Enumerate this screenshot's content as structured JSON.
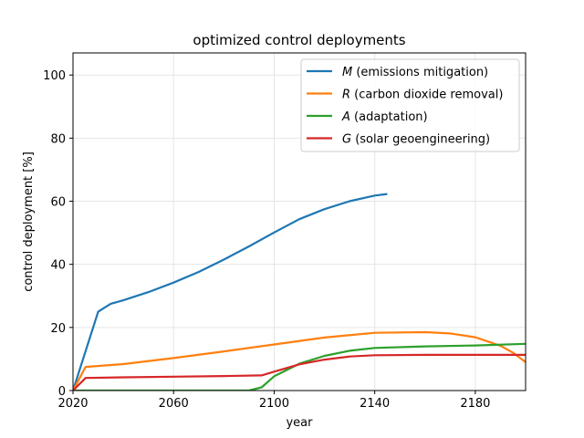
{
  "chart_data": {
    "type": "line",
    "title": "optimized control deployments",
    "xlabel": "year",
    "ylabel": "control deployment [%]",
    "xlim": [
      2020,
      2200
    ],
    "ylim": [
      0,
      107
    ],
    "xticks": [
      2020,
      2060,
      2100,
      2140,
      2180
    ],
    "yticks": [
      0,
      20,
      40,
      60,
      80,
      100
    ],
    "grid": true,
    "legend_position": "top-right",
    "series": [
      {
        "name": "M",
        "description": "(emissions mitigation)",
        "color": "#1f77b4",
        "x": [
          2020,
          2030,
          2035,
          2040,
          2050,
          2060,
          2070,
          2080,
          2090,
          2100,
          2110,
          2120,
          2130,
          2140,
          2145
        ],
        "y": [
          0,
          25,
          27.5,
          28.6,
          31.2,
          34.2,
          37.6,
          41.5,
          45.7,
          50.1,
          54.3,
          57.5,
          60.0,
          61.8,
          62.3
        ]
      },
      {
        "name": "R",
        "description": "(carbon dioxide removal)",
        "color": "#ff7f0e",
        "x": [
          2020,
          2025,
          2040,
          2060,
          2080,
          2100,
          2120,
          2140,
          2160,
          2170,
          2180,
          2190,
          2195,
          2200
        ],
        "y": [
          0,
          7.5,
          8.4,
          10.3,
          12.4,
          14.6,
          16.8,
          18.3,
          18.5,
          18.1,
          16.9,
          14.2,
          12.0,
          9.0
        ]
      },
      {
        "name": "A",
        "description": "(adaptation)",
        "color": "#2ca02c",
        "x": [
          2020,
          2040,
          2060,
          2080,
          2090,
          2095,
          2100,
          2110,
          2120,
          2130,
          2140,
          2160,
          2180,
          2200
        ],
        "y": [
          0,
          0,
          0,
          0,
          0,
          1.0,
          4.5,
          8.5,
          11.0,
          12.6,
          13.5,
          14.0,
          14.3,
          14.8
        ]
      },
      {
        "name": "G",
        "description": "(solar geoengineering)",
        "color": "#d62728",
        "x": [
          2020,
          2025,
          2040,
          2060,
          2080,
          2095,
          2100,
          2110,
          2120,
          2130,
          2140,
          2160,
          2180,
          2200
        ],
        "y": [
          0,
          4.0,
          4.2,
          4.4,
          4.6,
          4.8,
          6.0,
          8.3,
          9.8,
          10.8,
          11.2,
          11.3,
          11.3,
          11.3
        ]
      }
    ]
  }
}
